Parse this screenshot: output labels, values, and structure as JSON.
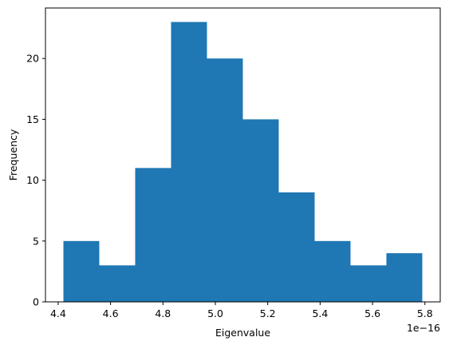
{
  "chart_data": {
    "type": "bar",
    "subtype": "histogram",
    "bin_edges": [
      4.42,
      4.557,
      4.694,
      4.831,
      4.968,
      5.105,
      5.242,
      5.379,
      5.516,
      5.653,
      5.79
    ],
    "counts": [
      5,
      3,
      11,
      23,
      20,
      15,
      9,
      5,
      3,
      4
    ],
    "bar_color": "#1f77b4",
    "title": "",
    "xlabel": "Eigenvalue",
    "ylabel": "Frequency",
    "x_offset_label": "1e−16",
    "xlim": [
      4.3515,
      5.8585
    ],
    "ylim": [
      0,
      24.15
    ],
    "xticks": [
      4.4,
      4.6,
      4.8,
      5.0,
      5.2,
      5.4,
      5.6,
      5.8
    ],
    "xtick_labels": [
      "4.4",
      "4.6",
      "4.8",
      "5.0",
      "5.2",
      "5.4",
      "5.6",
      "5.8"
    ],
    "yticks": [
      0,
      5,
      10,
      15,
      20
    ],
    "ytick_labels": [
      "0",
      "5",
      "10",
      "15",
      "20"
    ],
    "grid": false,
    "legend": "none"
  }
}
